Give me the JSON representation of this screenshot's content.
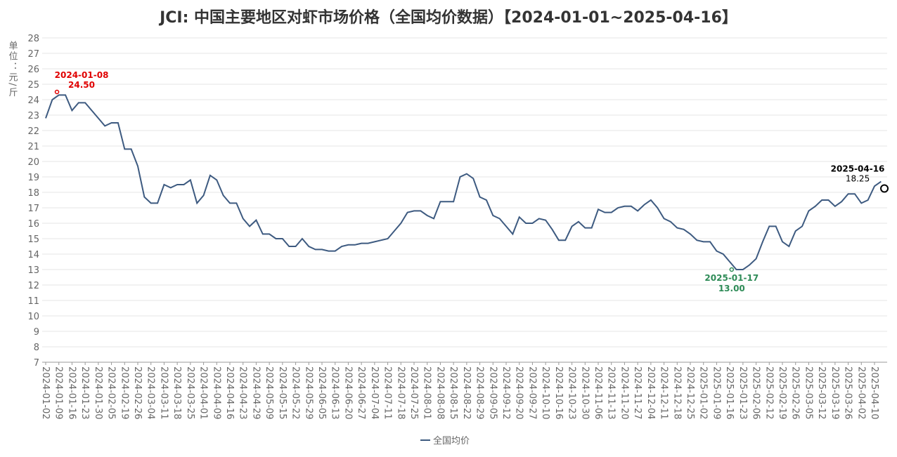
{
  "chart_data": {
    "type": "line",
    "title": "JCI: 中国主要地区对虾市场价格（全国均价数据）【2024-01-01~2025-04-16】",
    "y_label": "单位：元/斤",
    "ylim": [
      7,
      28
    ],
    "yticks": [
      7,
      8,
      9,
      10,
      11,
      12,
      13,
      14,
      15,
      16,
      17,
      18,
      19,
      20,
      21,
      22,
      23,
      24,
      25,
      26,
      27,
      28
    ],
    "grid": true,
    "legend": "bottom",
    "categories": [
      "2024-01-02",
      null,
      "2024-01-09",
      null,
      "2024-01-16",
      null,
      "2024-01-23",
      null,
      "2024-01-30",
      null,
      "2024-02-05",
      null,
      "2024-02-19",
      null,
      "2024-02-26",
      null,
      "2024-03-04",
      null,
      "2024-03-11",
      null,
      "2024-03-18",
      null,
      "2024-03-25",
      null,
      "2024-04-01",
      null,
      "2024-04-09",
      null,
      "2024-04-16",
      null,
      "2024-04-23",
      null,
      "2024-04-29",
      null,
      "2024-05-09",
      null,
      "2024-05-15",
      null,
      "2024-05-22",
      null,
      "2024-05-29",
      null,
      "2024-06-05",
      null,
      "2024-06-13",
      null,
      "2024-06-20",
      null,
      "2024-06-27",
      null,
      "2024-07-04",
      null,
      "2024-07-11",
      null,
      "2024-07-18",
      null,
      "2024-07-25",
      null,
      "2024-08-01",
      null,
      "2024-08-08",
      null,
      "2024-08-15",
      null,
      "2024-08-22",
      null,
      "2024-08-29",
      null,
      "2024-09-05",
      null,
      "2024-09-12",
      null,
      "2024-09-20",
      null,
      "2024-09-27",
      null,
      "2024-10-10",
      null,
      "2024-10-16",
      null,
      "2024-10-23",
      null,
      "2024-10-30",
      null,
      "2024-11-06",
      null,
      "2024-11-13",
      null,
      "2024-11-20",
      null,
      "2024-11-27",
      null,
      "2024-12-04",
      null,
      "2024-12-11",
      null,
      "2024-12-18",
      null,
      "2024-12-25",
      null,
      "2025-01-02",
      null,
      "2025-01-09",
      null,
      "2025-01-16",
      null,
      "2025-01-23",
      null,
      "2025-02-06",
      null,
      "2025-02-12",
      null,
      "2025-02-19",
      null,
      "2025-02-26",
      null,
      "2025-03-05",
      null,
      "2025-03-12",
      null,
      "2025-03-19",
      null,
      "2025-03-26",
      null,
      "2025-04-02",
      null,
      "2025-04-10",
      null
    ],
    "series": [
      {
        "name": "全国均价",
        "color": "#3d5a80",
        "values": [
          22.8,
          24.0,
          24.3,
          24.3,
          23.3,
          23.8,
          23.8,
          23.3,
          22.8,
          22.3,
          22.5,
          22.5,
          20.8,
          20.8,
          19.7,
          17.7,
          17.3,
          17.3,
          18.5,
          18.3,
          18.5,
          18.5,
          18.8,
          17.3,
          17.8,
          19.1,
          18.8,
          17.8,
          17.3,
          17.3,
          16.3,
          15.8,
          16.2,
          15.3,
          15.3,
          15.0,
          15.0,
          14.5,
          14.5,
          15.0,
          14.5,
          14.3,
          14.3,
          14.2,
          14.2,
          14.5,
          14.6,
          14.6,
          14.7,
          14.7,
          14.8,
          14.9,
          15.0,
          15.5,
          16.0,
          16.7,
          16.8,
          16.8,
          16.5,
          16.3,
          17.4,
          17.4,
          17.4,
          19.0,
          19.2,
          18.9,
          17.7,
          17.5,
          16.5,
          16.3,
          15.8,
          15.3,
          16.4,
          16.0,
          16.0,
          16.3,
          16.2,
          15.6,
          14.9,
          14.9,
          15.8,
          16.1,
          15.7,
          15.7,
          16.9,
          16.7,
          16.7,
          17.0,
          17.1,
          17.1,
          16.8,
          17.2,
          17.5,
          17.0,
          16.3,
          16.1,
          15.7,
          15.6,
          15.3,
          14.9,
          14.8,
          14.8,
          14.2,
          14.0,
          13.5,
          13.0,
          13.0,
          13.3,
          13.7,
          14.8,
          15.8,
          15.8,
          14.8,
          14.5,
          15.5,
          15.8,
          16.8,
          17.1,
          17.5,
          17.5,
          17.1,
          17.4,
          17.9,
          17.9,
          17.3,
          17.5,
          18.4,
          18.7
        ]
      }
    ],
    "annotations": [
      {
        "date": "2024-01-08",
        "value": 24.5,
        "value_label": "24.50",
        "color": "#e00000"
      },
      {
        "date": "2025-01-17",
        "value": 13.0,
        "value_label": "13.00",
        "color": "#2e8b57"
      },
      {
        "date": "2025-04-16",
        "value": 18.25,
        "value_label": "18.25",
        "color": "#000000"
      }
    ]
  }
}
